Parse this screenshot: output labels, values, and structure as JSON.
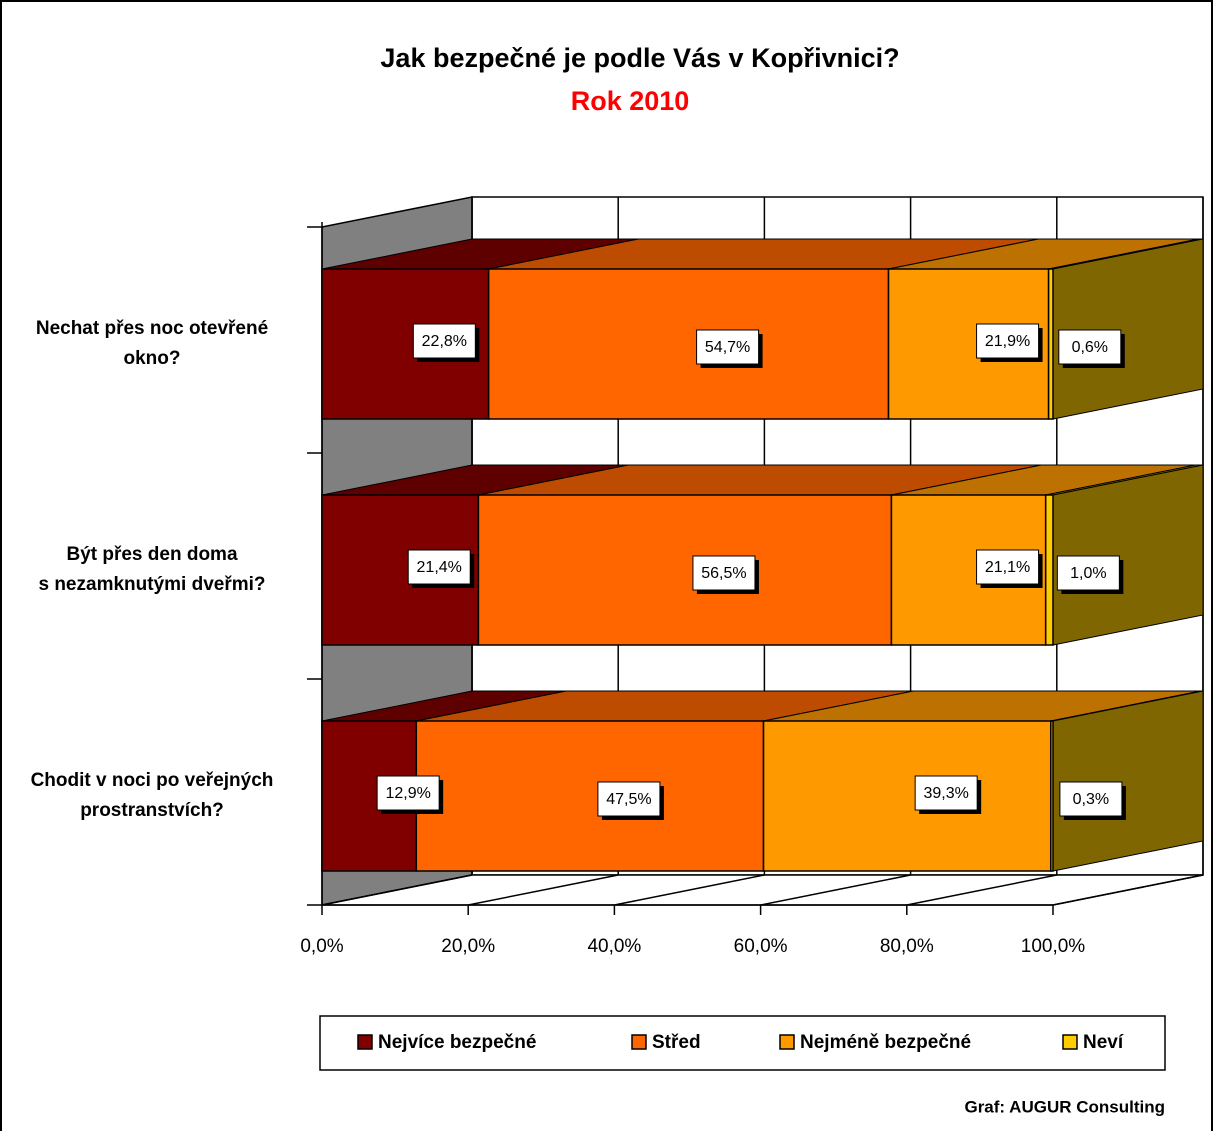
{
  "chart_data": {
    "type": "bar3d_stacked_horizontal",
    "title": "Jak bezpečné je podle Vás v Kopřivnici?",
    "subtitle": "Rok 2010",
    "source": "Graf: AUGUR Consulting",
    "categories": [
      "Nechat přes noc otevřené\nokno?",
      "Být přes den doma\ns  nezamknutými dveřmi?",
      "Chodit v noci po veřejných\nprostranstvích?"
    ],
    "series": [
      {
        "name": "Nejvíce bezpečné",
        "color": "#800000",
        "values": [
          22.8,
          21.4,
          12.9
        ],
        "value_labels": [
          "22,8%",
          "21,4%",
          "12,9%"
        ]
      },
      {
        "name": "Střed",
        "color": "#FF6600",
        "values": [
          54.7,
          56.5,
          47.5
        ],
        "value_labels": [
          "54,7%",
          "56,5%",
          "47,5%"
        ]
      },
      {
        "name": "Nejméně bezpečné",
        "color": "#FF9900",
        "values": [
          21.9,
          21.1,
          39.3
        ],
        "value_labels": [
          "21,9%",
          "21,1%",
          "39,3%"
        ]
      },
      {
        "name": "Neví",
        "color": "#FFCC00",
        "values": [
          0.6,
          1.0,
          0.3
        ],
        "value_labels": [
          "0,6%",
          "1,0%",
          "0,3%"
        ]
      }
    ],
    "xlim": [
      0,
      100
    ],
    "xticks": [
      {
        "value": 0,
        "label": "0,0%"
      },
      {
        "value": 20,
        "label": "20,0%"
      },
      {
        "value": 40,
        "label": "40,0%"
      },
      {
        "value": 60,
        "label": "60,0%"
      },
      {
        "value": 80,
        "label": "80,0%"
      },
      {
        "value": 100,
        "label": "100,0%"
      }
    ],
    "grid": true,
    "legend": "bottom"
  }
}
